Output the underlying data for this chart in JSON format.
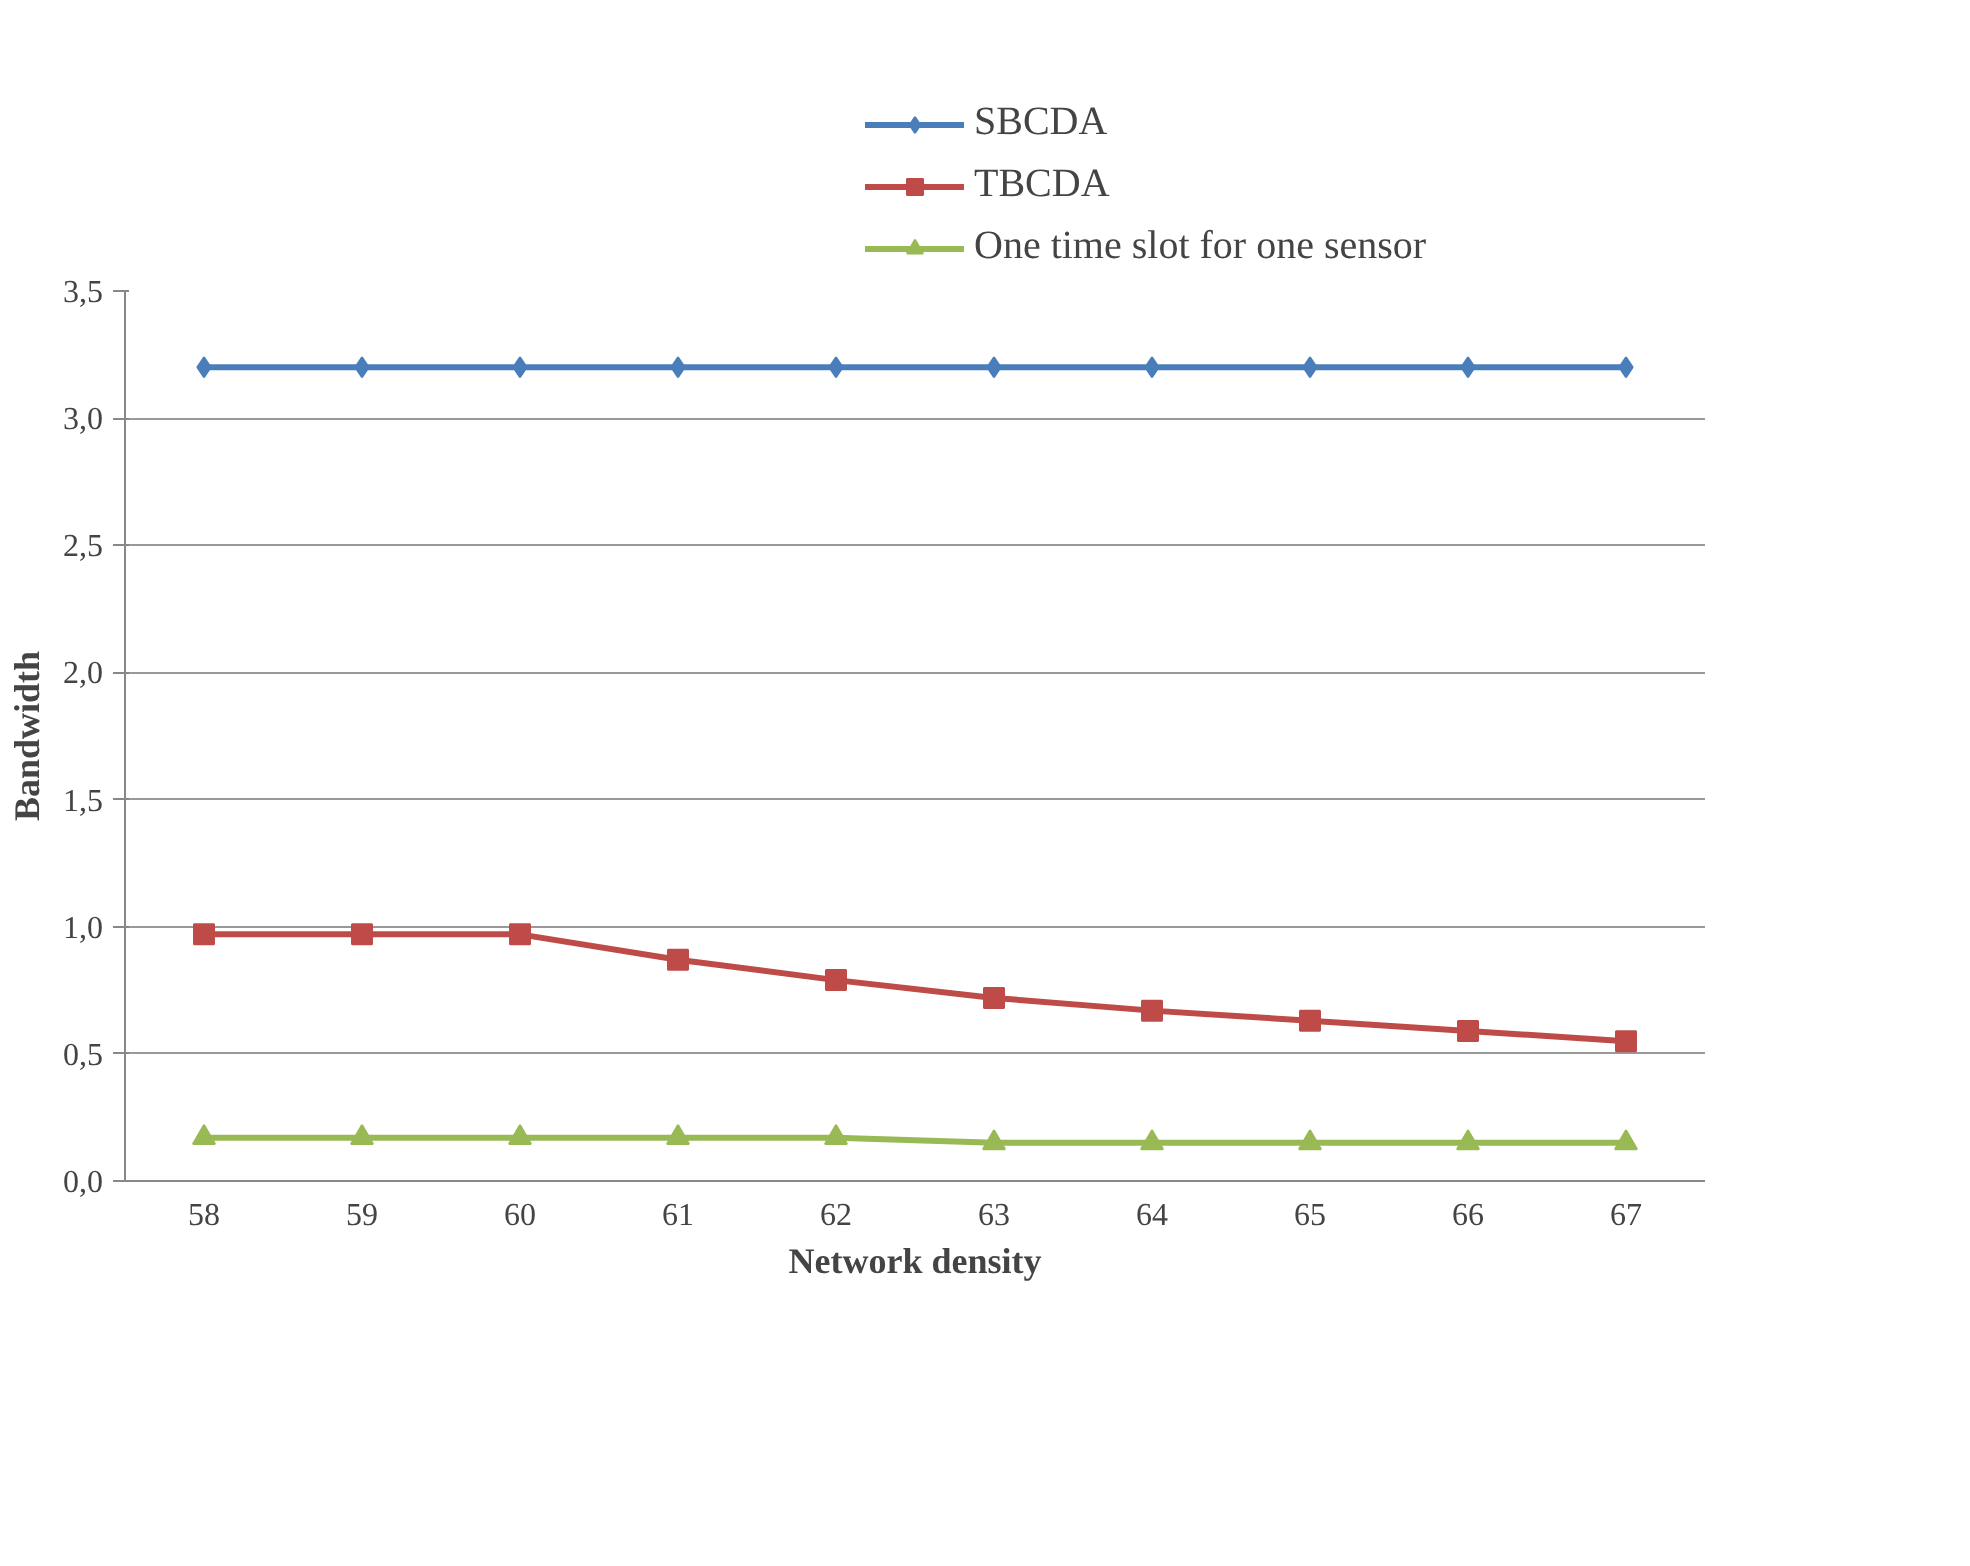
{
  "chart_data": {
    "type": "line",
    "xlabel": "Network density",
    "ylabel": "Bandwidth",
    "categories": [
      "58",
      "59",
      "60",
      "61",
      "62",
      "63",
      "64",
      "65",
      "66",
      "67"
    ],
    "series": [
      {
        "name": "SBCDA",
        "color": "#4a7ebb",
        "marker": "diamond",
        "values": [
          3.2,
          3.2,
          3.2,
          3.2,
          3.2,
          3.2,
          3.2,
          3.2,
          3.2,
          3.2
        ]
      },
      {
        "name": "TBCDA",
        "color": "#be4b48",
        "marker": "square",
        "values": [
          0.97,
          0.97,
          0.97,
          0.87,
          0.79,
          0.72,
          0.67,
          0.63,
          0.59,
          0.55
        ]
      },
      {
        "name": "One time slot for one sensor",
        "color": "#98b954",
        "marker": "triangle",
        "values": [
          0.17,
          0.17,
          0.17,
          0.17,
          0.17,
          0.15,
          0.15,
          0.15,
          0.15,
          0.15
        ]
      }
    ],
    "ylim": [
      0,
      3.5
    ],
    "yticks": [
      {
        "value": 0,
        "label": "0,0"
      },
      {
        "value": 0.5,
        "label": "0,5"
      },
      {
        "value": 1,
        "label": "1,0"
      },
      {
        "value": 1.5,
        "label": "1,5"
      },
      {
        "value": 2,
        "label": "2,0"
      },
      {
        "value": 2.5,
        "label": "2,5"
      },
      {
        "value": 3,
        "label": "3,0"
      },
      {
        "value": 3.5,
        "label": "3,5"
      }
    ],
    "grid": "y",
    "legend": "top right",
    "line_style": "solid"
  }
}
